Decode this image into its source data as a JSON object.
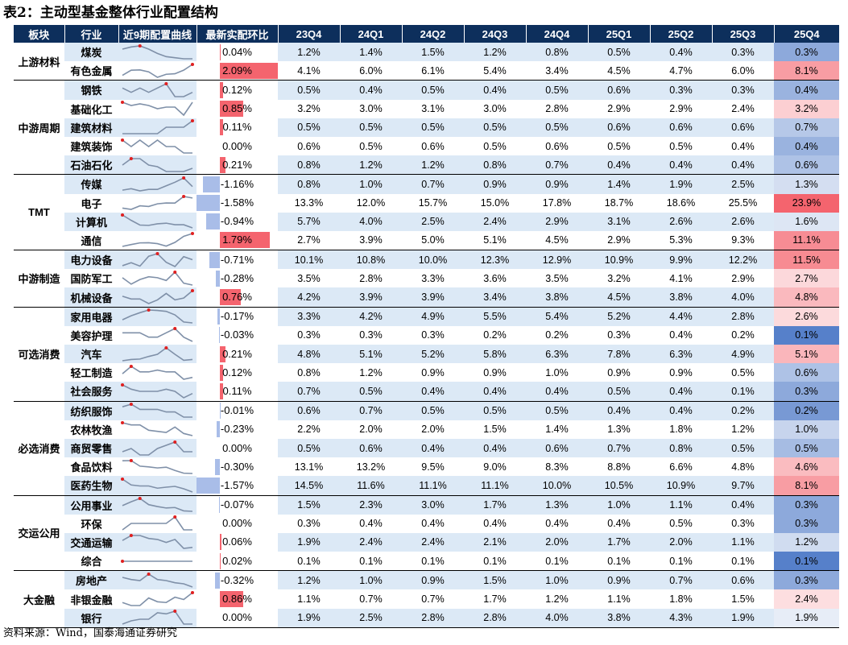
{
  "title": "表2：主动型基金整体行业配置结构",
  "source": "资料来源：Wind，国泰海通证券研究",
  "headers": [
    "板块",
    "行业",
    "近9期配置曲线",
    "最新实配环比",
    "23Q4",
    "24Q1",
    "24Q2",
    "24Q3",
    "24Q4",
    "25Q1",
    "25Q2",
    "25Q3",
    "25Q4"
  ],
  "colors": {
    "header_bg": "#0d2f5c",
    "stripe": "#dce9f6",
    "pos_bar": "#f4646e",
    "neg_bar": "#a9bde8",
    "spark_line": "#7f90a8",
    "spark_dot": "#e02020",
    "heat_high": "#f4646e",
    "heat_low": "#4472c4"
  },
  "sectors": [
    {
      "name": "上游材料",
      "rows": [
        {
          "industry": "煤炭",
          "change": "0.04%",
          "values": [
            "1.2%",
            "1.4%",
            "1.5%",
            "1.2%",
            "0.8%",
            "0.5%",
            "0.4%",
            "0.3%",
            "0.3%"
          ]
        },
        {
          "industry": "有色金属",
          "change": "2.09%",
          "values": [
            "4.1%",
            "6.0%",
            "6.1%",
            "5.4%",
            "3.4%",
            "4.5%",
            "4.7%",
            "6.0%",
            "8.1%"
          ]
        }
      ]
    },
    {
      "name": "中游周期",
      "rows": [
        {
          "industry": "钢铁",
          "change": "0.12%",
          "values": [
            "0.5%",
            "0.4%",
            "0.5%",
            "0.4%",
            "0.5%",
            "0.6%",
            "0.3%",
            "0.3%",
            "0.4%"
          ]
        },
        {
          "industry": "基础化工",
          "change": "0.85%",
          "values": [
            "3.2%",
            "3.0%",
            "3.1%",
            "3.0%",
            "2.8%",
            "2.9%",
            "2.9%",
            "2.4%",
            "3.2%"
          ]
        },
        {
          "industry": "建筑材料",
          "change": "0.11%",
          "values": [
            "0.5%",
            "0.5%",
            "0.5%",
            "0.5%",
            "0.5%",
            "0.6%",
            "0.6%",
            "0.6%",
            "0.7%"
          ]
        },
        {
          "industry": "建筑装饰",
          "change": "0.00%",
          "values": [
            "0.6%",
            "0.5%",
            "0.6%",
            "0.5%",
            "0.6%",
            "0.5%",
            "0.5%",
            "0.4%",
            "0.4%"
          ]
        },
        {
          "industry": "石油石化",
          "change": "0.21%",
          "values": [
            "0.8%",
            "1.2%",
            "1.2%",
            "0.8%",
            "0.7%",
            "0.4%",
            "0.4%",
            "0.4%",
            "0.6%"
          ]
        }
      ]
    },
    {
      "name": "TMT",
      "rows": [
        {
          "industry": "传媒",
          "change": "-1.16%",
          "values": [
            "0.8%",
            "1.0%",
            "0.7%",
            "0.9%",
            "0.9%",
            "1.4%",
            "1.9%",
            "2.5%",
            "1.3%"
          ]
        },
        {
          "industry": "电子",
          "change": "-1.58%",
          "values": [
            "13.3%",
            "12.0%",
            "15.7%",
            "15.0%",
            "17.8%",
            "18.7%",
            "18.6%",
            "25.5%",
            "23.9%"
          ]
        },
        {
          "industry": "计算机",
          "change": "-0.94%",
          "values": [
            "5.7%",
            "4.0%",
            "2.5%",
            "2.4%",
            "2.9%",
            "3.1%",
            "2.6%",
            "2.6%",
            "1.6%"
          ]
        },
        {
          "industry": "通信",
          "change": "1.79%",
          "values": [
            "2.7%",
            "3.9%",
            "5.0%",
            "5.1%",
            "4.5%",
            "2.9%",
            "5.3%",
            "9.3%",
            "11.1%"
          ]
        }
      ]
    },
    {
      "name": "中游制造",
      "rows": [
        {
          "industry": "电力设备",
          "change": "-0.71%",
          "values": [
            "10.1%",
            "10.8%",
            "10.0%",
            "12.3%",
            "12.9%",
            "10.9%",
            "9.9%",
            "12.2%",
            "11.5%"
          ]
        },
        {
          "industry": "国防军工",
          "change": "-0.28%",
          "values": [
            "3.5%",
            "2.8%",
            "3.3%",
            "3.6%",
            "3.5%",
            "3.2%",
            "4.1%",
            "2.9%",
            "2.7%"
          ]
        },
        {
          "industry": "机械设备",
          "change": "0.76%",
          "values": [
            "4.2%",
            "3.9%",
            "3.9%",
            "3.4%",
            "3.8%",
            "4.5%",
            "3.8%",
            "4.0%",
            "4.8%"
          ]
        }
      ]
    },
    {
      "name": "可选消费",
      "rows": [
        {
          "industry": "家用电器",
          "change": "-0.17%",
          "values": [
            "3.3%",
            "4.2%",
            "4.9%",
            "5.5%",
            "5.4%",
            "5.2%",
            "4.4%",
            "2.8%",
            "2.6%"
          ]
        },
        {
          "industry": "美容护理",
          "change": "-0.03%",
          "values": [
            "0.3%",
            "0.3%",
            "0.3%",
            "0.2%",
            "0.2%",
            "0.3%",
            "0.4%",
            "0.2%",
            "0.1%"
          ]
        },
        {
          "industry": "汽车",
          "change": "0.21%",
          "values": [
            "4.8%",
            "5.1%",
            "5.2%",
            "5.8%",
            "6.3%",
            "7.8%",
            "6.3%",
            "4.9%",
            "5.1%"
          ]
        },
        {
          "industry": "轻工制造",
          "change": "0.12%",
          "values": [
            "0.8%",
            "1.2%",
            "0.9%",
            "0.9%",
            "1.0%",
            "0.9%",
            "0.9%",
            "0.5%",
            "0.6%"
          ]
        },
        {
          "industry": "社会服务",
          "change": "0.11%",
          "values": [
            "0.7%",
            "0.5%",
            "0.4%",
            "0.4%",
            "0.4%",
            "0.5%",
            "0.4%",
            "0.1%",
            "0.3%"
          ]
        }
      ]
    },
    {
      "name": "必选消费",
      "rows": [
        {
          "industry": "纺织服饰",
          "change": "-0.01%",
          "values": [
            "0.6%",
            "0.7%",
            "0.5%",
            "0.5%",
            "0.5%",
            "0.4%",
            "0.4%",
            "0.2%",
            "0.2%"
          ]
        },
        {
          "industry": "农林牧渔",
          "change": "-0.23%",
          "values": [
            "2.2%",
            "2.0%",
            "2.0%",
            "1.5%",
            "1.4%",
            "1.3%",
            "1.8%",
            "1.2%",
            "1.0%"
          ]
        },
        {
          "industry": "商贸零售",
          "change": "0.00%",
          "values": [
            "0.5%",
            "0.6%",
            "0.4%",
            "0.4%",
            "0.6%",
            "0.7%",
            "0.8%",
            "0.5%",
            "0.5%"
          ]
        },
        {
          "industry": "食品饮料",
          "change": "-0.30%",
          "values": [
            "13.1%",
            "13.2%",
            "9.5%",
            "9.0%",
            "8.3%",
            "8.8%",
            "6.6%",
            "4.8%",
            "4.6%"
          ]
        },
        {
          "industry": "医药生物",
          "change": "-1.57%",
          "values": [
            "14.5%",
            "11.6%",
            "11.1%",
            "11.1%",
            "10.0%",
            "10.5%",
            "10.9%",
            "9.7%",
            "8.1%"
          ]
        }
      ]
    },
    {
      "name": "交运公用",
      "rows": [
        {
          "industry": "公用事业",
          "change": "-0.07%",
          "values": [
            "1.5%",
            "2.3%",
            "3.0%",
            "1.7%",
            "1.3%",
            "1.0%",
            "1.1%",
            "0.4%",
            "0.3%"
          ]
        },
        {
          "industry": "环保",
          "change": "0.00%",
          "values": [
            "0.3%",
            "0.4%",
            "0.4%",
            "0.4%",
            "0.4%",
            "0.4%",
            "0.5%",
            "0.3%",
            "0.3%"
          ]
        },
        {
          "industry": "交通运输",
          "change": "0.06%",
          "values": [
            "1.9%",
            "2.4%",
            "2.4%",
            "2.1%",
            "2.0%",
            "1.7%",
            "2.0%",
            "1.1%",
            "1.2%"
          ]
        },
        {
          "industry": "综合",
          "change": "0.02%",
          "values": [
            "0.1%",
            "0.1%",
            "0.1%",
            "0.1%",
            "0.1%",
            "0.1%",
            "0.1%",
            "0.1%",
            "0.1%"
          ]
        }
      ]
    },
    {
      "name": "大金融",
      "rows": [
        {
          "industry": "房地产",
          "change": "-0.32%",
          "values": [
            "1.2%",
            "1.0%",
            "0.9%",
            "1.5%",
            "1.0%",
            "0.9%",
            "0.7%",
            "0.6%",
            "0.3%"
          ]
        },
        {
          "industry": "非银金融",
          "change": "0.86%",
          "values": [
            "1.1%",
            "0.7%",
            "0.7%",
            "1.7%",
            "1.2%",
            "1.1%",
            "1.8%",
            "1.5%",
            "2.4%"
          ]
        },
        {
          "industry": "银行",
          "change": "0.00%",
          "values": [
            "1.9%",
            "2.5%",
            "2.8%",
            "2.8%",
            "4.0%",
            "3.8%",
            "4.3%",
            "1.9%",
            "1.9%"
          ]
        }
      ]
    }
  ]
}
